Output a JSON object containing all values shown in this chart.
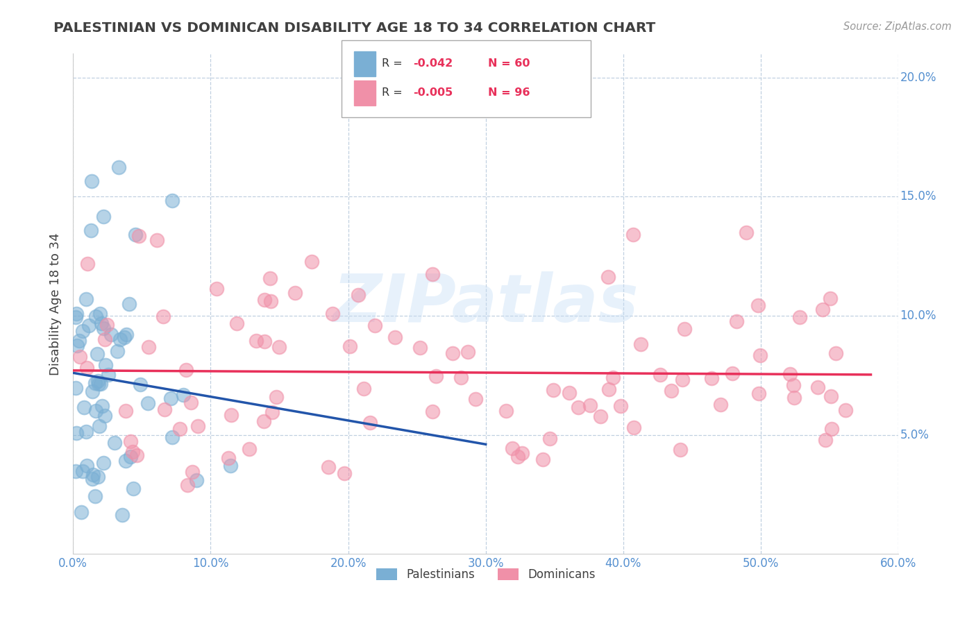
{
  "title": "PALESTINIAN VS DOMINICAN DISABILITY AGE 18 TO 34 CORRELATION CHART",
  "source": "Source: ZipAtlas.com",
  "ylabel": "Disability Age 18 to 34",
  "xlim": [
    0.0,
    0.6
  ],
  "ylim": [
    0.0,
    0.21
  ],
  "xtick_labels": [
    "0.0%",
    "10.0%",
    "20.0%",
    "30.0%",
    "40.0%",
    "50.0%",
    "60.0%"
  ],
  "xtick_vals": [
    0.0,
    0.1,
    0.2,
    0.3,
    0.4,
    0.5,
    0.6
  ],
  "ytick_labels": [
    "5.0%",
    "10.0%",
    "15.0%",
    "20.0%"
  ],
  "ytick_vals": [
    0.05,
    0.1,
    0.15,
    0.2
  ],
  "blue_n": 60,
  "pink_n": 96,
  "dot_color_blue": "#7aafd4",
  "dot_color_pink": "#f090a8",
  "line_color_blue": "#2255aa",
  "line_color_pink": "#e8305a",
  "watermark": "ZIPatlas",
  "bg_color": "#ffffff",
  "grid_color": "#c0d0e0",
  "title_color": "#404040",
  "axis_label_color": "#5590d0",
  "legend_r_color": "#e8305a",
  "legend_text_color": "#333333"
}
